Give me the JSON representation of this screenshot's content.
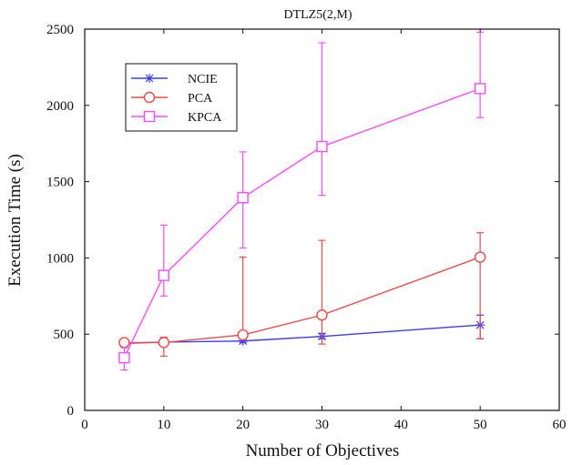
{
  "chart_data": {
    "type": "line",
    "title": "DTLZ5(2,M)",
    "xlabel": "Number of Objectives",
    "ylabel": "Execution Time (s)",
    "xlim": [
      0,
      60
    ],
    "ylim": [
      0,
      2500
    ],
    "x_ticks": [
      0,
      10,
      20,
      30,
      40,
      50,
      60
    ],
    "y_ticks": [
      0,
      500,
      1000,
      1500,
      2000,
      2500
    ],
    "x_tick_labels": [
      "0",
      "10",
      "20",
      "30",
      "40",
      "50",
      "60"
    ],
    "y_tick_labels": [
      "0",
      "500",
      "1000",
      "1500",
      "2000",
      "2500"
    ],
    "grid": false,
    "legend_position": "top-left",
    "series": [
      {
        "name": "NCIE",
        "color": "#3b3bff",
        "marker": "asterisk",
        "x": [
          5,
          10,
          20,
          30,
          50
        ],
        "y": [
          440,
          448,
          455,
          485,
          560
        ],
        "error_low": [
          430,
          438,
          445,
          470,
          470
        ],
        "error_high": [
          450,
          458,
          465,
          505,
          625
        ]
      },
      {
        "name": "PCA",
        "color": "#ef4b4b",
        "marker": "circle",
        "x": [
          5,
          10,
          20,
          30,
          50
        ],
        "y": [
          445,
          445,
          495,
          625,
          1005
        ],
        "error_low": [
          430,
          355,
          470,
          435,
          470
        ],
        "error_high": [
          455,
          480,
          1005,
          1115,
          1165
        ]
      },
      {
        "name": "KPCA",
        "color": "#ff4bff",
        "marker": "square",
        "x": [
          5,
          10,
          20,
          30,
          50
        ],
        "y": [
          345,
          885,
          1395,
          1730,
          2110
        ],
        "error_low": [
          265,
          750,
          1065,
          1410,
          1920
        ],
        "error_high": [
          410,
          1215,
          1695,
          2410,
          2480
        ]
      }
    ]
  }
}
